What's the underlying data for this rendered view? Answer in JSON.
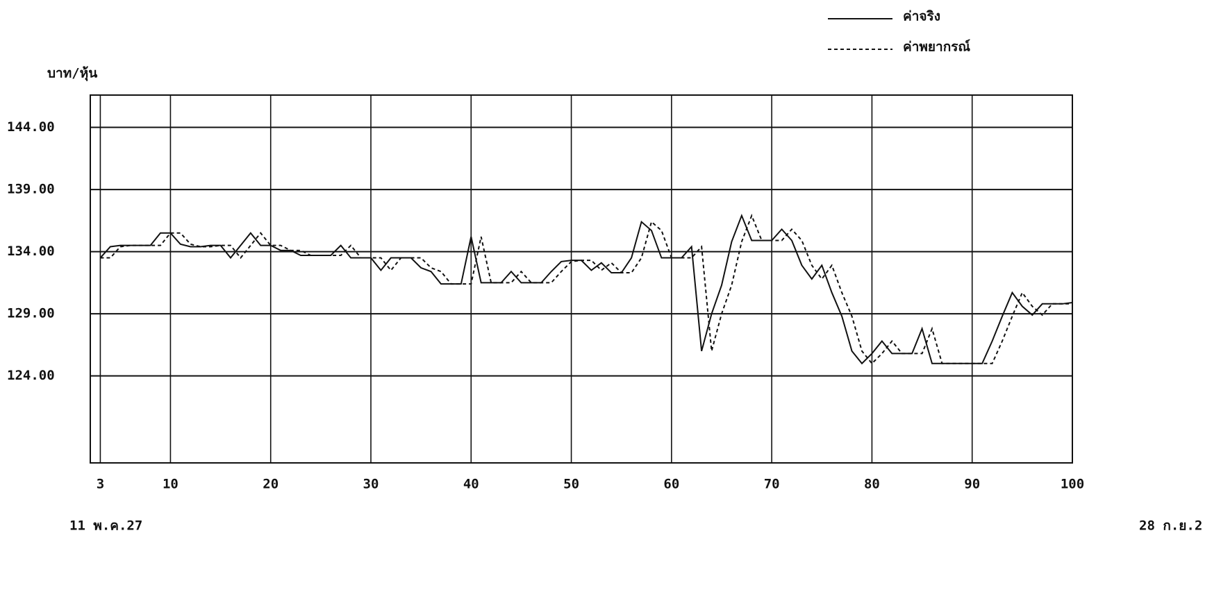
{
  "chart_data": {
    "type": "line",
    "y_label": "บาท/หุ้น",
    "start_label": "11 พ.ค.27",
    "end_label": "28 ก.ย.2",
    "x": [
      3,
      4,
      5,
      6,
      7,
      8,
      9,
      10,
      11,
      12,
      13,
      14,
      15,
      16,
      17,
      18,
      19,
      20,
      21,
      22,
      23,
      24,
      25,
      26,
      27,
      28,
      29,
      30,
      31,
      32,
      33,
      34,
      35,
      36,
      37,
      38,
      39,
      40,
      41,
      42,
      43,
      44,
      45,
      46,
      47,
      48,
      49,
      50,
      51,
      52,
      53,
      54,
      55,
      56,
      57,
      58,
      59,
      60,
      61,
      62,
      63,
      64,
      65,
      66,
      67,
      68,
      69,
      70,
      71,
      72,
      73,
      74,
      75,
      76,
      77,
      78,
      79,
      80,
      81,
      82,
      83,
      84,
      85,
      86,
      87,
      88,
      89,
      90,
      91,
      92,
      93,
      94,
      95,
      96,
      97,
      98,
      99,
      100
    ],
    "series": [
      {
        "name": "ค่าจริง",
        "color": "#111111",
        "style": "solid",
        "values": [
          133.5,
          134.4,
          134.5,
          134.5,
          134.5,
          134.5,
          135.5,
          135.5,
          134.6,
          134.4,
          134.4,
          134.5,
          134.5,
          133.5,
          134.5,
          135.5,
          134.5,
          134.5,
          134.1,
          134.1,
          133.7,
          133.7,
          133.7,
          133.7,
          134.5,
          133.5,
          133.5,
          133.5,
          132.5,
          133.5,
          133.5,
          133.5,
          132.7,
          132.4,
          131.4,
          131.4,
          131.4,
          135.2,
          131.5,
          131.5,
          131.5,
          132.4,
          131.5,
          131.5,
          131.5,
          132.4,
          133.2,
          133.3,
          133.3,
          132.5,
          133.1,
          132.3,
          132.3,
          133.5,
          136.4,
          135.7,
          133.5,
          133.5,
          133.5,
          134.4,
          126,
          129,
          131.3,
          134.8,
          136.9,
          134.9,
          134.9,
          134.9,
          135.8,
          134.9,
          132.9,
          131.8,
          132.9,
          130.7,
          128.8,
          126,
          125,
          125.8,
          126.8,
          125.8,
          125.8,
          125.8,
          127.8,
          125,
          125,
          125,
          125,
          125,
          125,
          126.8,
          128.8,
          130.7,
          129.6,
          128.9,
          129.8,
          129.8,
          129.8,
          129.9
        ]
      },
      {
        "name": "ค่าพยากรณ์",
        "color": "#111111",
        "style": "dashed",
        "values": [
          133.5,
          133.5,
          134.4,
          134.5,
          134.5,
          134.5,
          134.5,
          135.5,
          135.5,
          134.6,
          134.4,
          134.4,
          134.5,
          134.5,
          133.5,
          134.5,
          135.5,
          134.5,
          134.5,
          134.1,
          134.1,
          133.7,
          133.7,
          133.7,
          133.7,
          134.5,
          133.5,
          133.5,
          133.5,
          132.5,
          133.5,
          133.5,
          133.5,
          132.7,
          132.4,
          131.4,
          131.4,
          131.4,
          135.2,
          131.5,
          131.5,
          131.5,
          132.4,
          131.5,
          131.5,
          131.5,
          132.4,
          133.2,
          133.3,
          133.3,
          132.5,
          133.1,
          132.3,
          132.3,
          133.5,
          136.4,
          135.7,
          133.5,
          133.5,
          133.5,
          134.4,
          126,
          129,
          131.3,
          134.8,
          136.9,
          134.9,
          134.9,
          134.9,
          135.8,
          134.9,
          132.9,
          131.8,
          132.9,
          130.7,
          128.8,
          126,
          125,
          125.8,
          126.8,
          125.8,
          125.8,
          125.8,
          127.8,
          125,
          125,
          125,
          125,
          125,
          125,
          126.8,
          128.8,
          130.7,
          129.6,
          128.9,
          129.8,
          129.8,
          129.8
        ]
      }
    ],
    "xlim": [
      2,
      100
    ],
    "xticks": [
      3,
      10,
      20,
      30,
      40,
      50,
      60,
      70,
      80,
      90,
      100
    ],
    "ylim": [
      117,
      146.6
    ],
    "yticks": [
      {
        "value": 124,
        "label": "124.00"
      },
      {
        "value": 129,
        "label": "129.00"
      },
      {
        "value": 134,
        "label": "134.00"
      },
      {
        "value": 139,
        "label": "139.00"
      },
      {
        "value": 144,
        "label": "144.00"
      }
    ],
    "grid": true,
    "legend": "upper right"
  }
}
